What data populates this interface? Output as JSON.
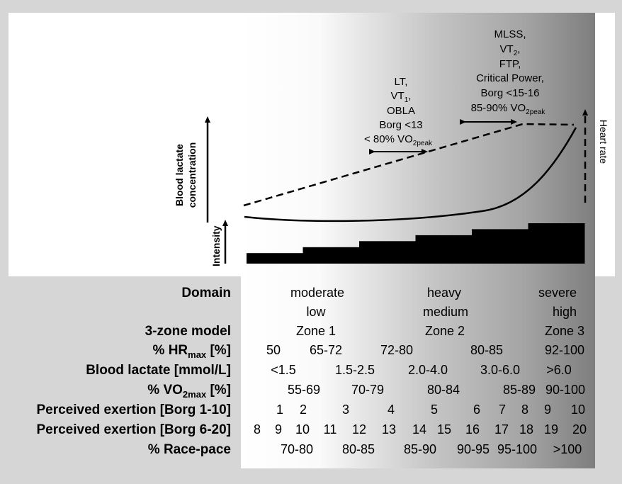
{
  "annotations": {
    "lt": {
      "line1": "LT,",
      "line2_main": "VT",
      "line2_sub": "1",
      "line2_end": ",",
      "line3": "OBLA",
      "line4": "Borg <13",
      "line5_main": "< 80% VO",
      "line5_sub": "2peak"
    },
    "mlss": {
      "line1": "MLSS,",
      "line2_main": "VT",
      "line2_sub": "2",
      "line2_end": ",",
      "line3": "FTP,",
      "line4": "Critical Power,",
      "line5": "Borg <15-16",
      "line6_main": "85-90% VO",
      "line6_sub": "2peak"
    },
    "y_axis_blood_lactate_line1": "Blood lactate",
    "y_axis_blood_lactate_line2": "concentration",
    "y_axis_intensity": "Intensity",
    "y_axis_heart_rate": "Heart rate"
  },
  "intensity_steps": [
    0.35,
    0.55,
    0.75,
    0.95,
    1.15,
    1.35
  ],
  "table": {
    "domain_label": "Domain",
    "domains": [
      "moderate",
      "heavy",
      "severe"
    ],
    "levels": [
      "low",
      "medium",
      "high"
    ],
    "zone_model_label": "3-zone model",
    "zones": [
      "Zone 1",
      "Zone 2",
      "Zone 3"
    ],
    "hrmax_label_main": "% HR",
    "hrmax_label_sub": "max",
    "hrmax_label_end": " [%]",
    "hrmax": [
      "50",
      "65-72",
      "72-80",
      "80-85",
      "92-100"
    ],
    "lactate_label": "Blood lactate [mmol/L]",
    "lactate": [
      "<1.5",
      "1.5-2.5",
      "2.0-4.0",
      "3.0-6.0",
      ">6.0"
    ],
    "vo2_label_main": "% VO",
    "vo2_label_sub": "2max",
    "vo2_label_end": " [%]",
    "vo2": [
      "55-69",
      "70-79",
      "80-84",
      "85-89",
      "90-100"
    ],
    "borg10_label": "Perceived exertion [Borg 1-10]",
    "borg10": [
      "1",
      "2",
      "3",
      "4",
      "5",
      "6",
      "7",
      "8",
      "9",
      "10"
    ],
    "borg20_label": "Perceived exertion [Borg 6-20]",
    "borg20": [
      "8",
      "9",
      "10",
      "11",
      "12",
      "13",
      "14",
      "15",
      "16",
      "17",
      "18",
      "19",
      "20"
    ],
    "racepace_label": "% Race-pace",
    "racepace": [
      "70-80",
      "80-85",
      "85-90",
      "90-95",
      "95-100",
      ">100"
    ]
  },
  "colors": {
    "background": "#d6d6d6",
    "gradient_light": "#ffffff",
    "gradient_dark": "#8a8a8a",
    "ink": "#000000"
  }
}
